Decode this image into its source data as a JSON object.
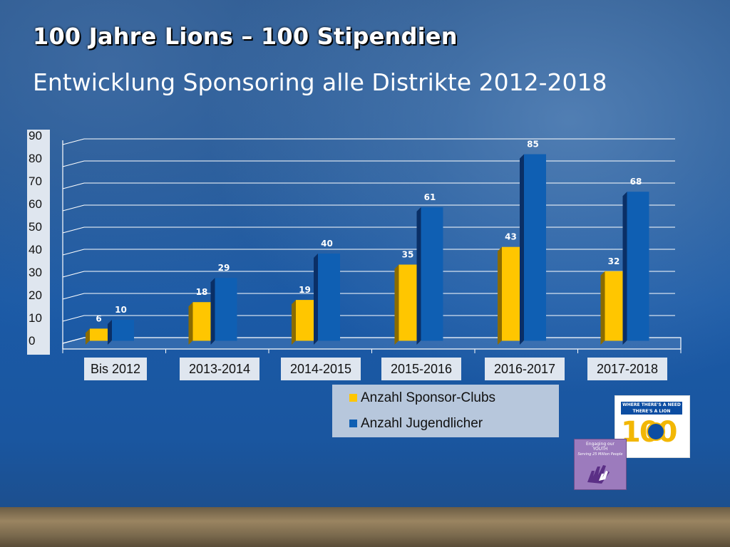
{
  "slide": {
    "title": "100 Jahre Lions – 100 Stipendien",
    "subtitle": "Entwicklung Sponsoring alle Distrikte 2012-2018"
  },
  "chart_data": {
    "type": "bar",
    "categories": [
      "Bis 2012",
      "2013-2014",
      "2014-2015",
      "2015-2016",
      "2016-2017",
      "2017-2018"
    ],
    "series": [
      {
        "name": "Anzahl Sponsor-Clubs",
        "values": [
          6,
          18,
          19,
          35,
          43,
          32
        ],
        "color": "#ffc600"
      },
      {
        "name": "Anzahl Jugendlicher",
        "values": [
          10,
          29,
          40,
          61,
          85,
          68
        ],
        "color": "#0f5fb3"
      }
    ],
    "yticks": [
      "0",
      "10",
      "20",
      "30",
      "40",
      "50",
      "60",
      "70",
      "80",
      "90"
    ],
    "ylim": [
      0,
      90
    ],
    "grid": true,
    "legend_position": "bottom"
  },
  "logos": {
    "lions100": {
      "line1": "WHERE THERE'S A NEED",
      "line2": "THERE'S A LION",
      "number": "100"
    },
    "youth": {
      "line1": "Engaging our",
      "line2": "YOUTH",
      "line3": "Serving 25 Million People"
    }
  }
}
